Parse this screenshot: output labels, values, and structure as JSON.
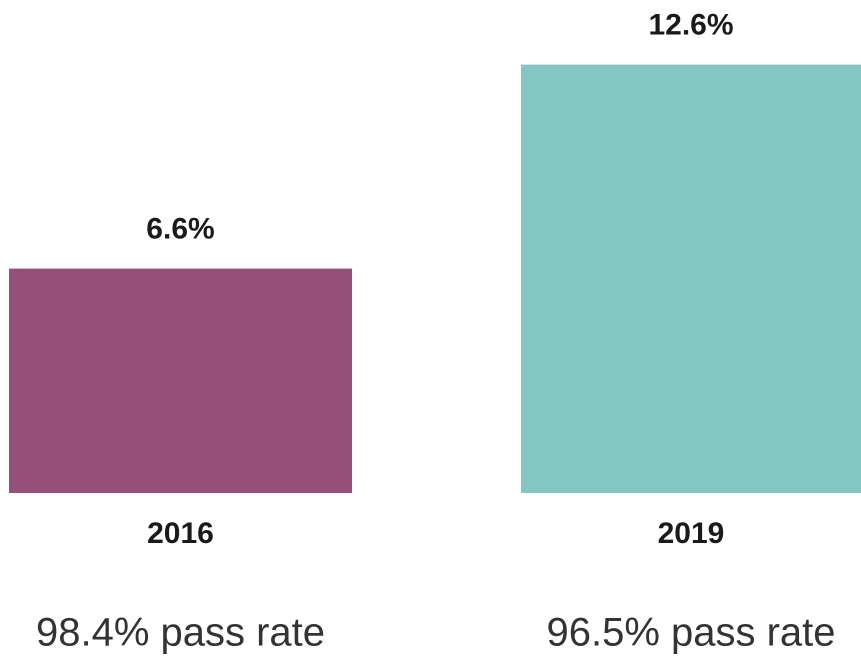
{
  "chart_data": {
    "type": "bar",
    "categories": [
      "2016",
      "2019"
    ],
    "values": [
      6.6,
      12.6
    ],
    "value_labels": [
      "6.6%",
      "12.6%"
    ],
    "colors": [
      "#97507a",
      "#84c6c4"
    ],
    "annotations": [
      "98.4% pass rate",
      "96.5% pass rate"
    ]
  }
}
